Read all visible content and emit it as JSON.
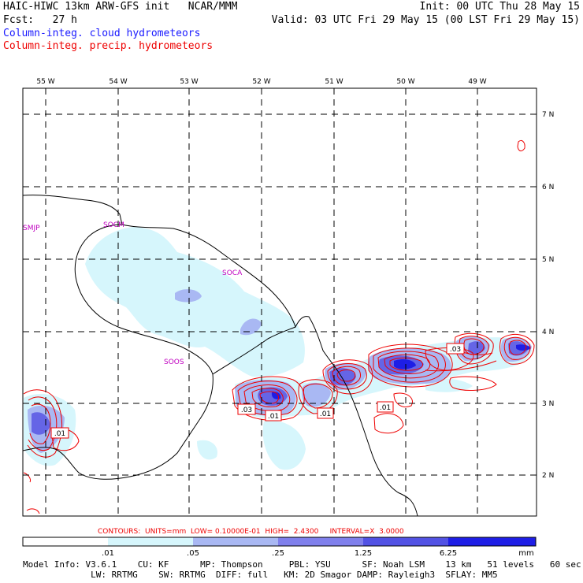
{
  "header": {
    "title": "HAIC-HIWC 13km ARW-GFS init   NCAR/MMM",
    "init": "Init: 00 UTC Thu 28 May 15",
    "fcst": "Fcst:   27 h",
    "valid": "Valid: 03 UTC Fri 29 May 15 (00 LST Fri 29 May 15)",
    "field_cloud": "Column-integ. cloud hydrometeors",
    "field_precip": "Column-integ. precip. hydrometeors"
  },
  "map": {
    "longitude_labels": [
      "55 W",
      "54 W",
      "53 W",
      "52 W",
      "51 W",
      "50 W",
      "49 W"
    ],
    "latitude_labels": [
      "7 N",
      "6 N",
      "5 N",
      "4 N",
      "3 N",
      "2 N"
    ],
    "stations": [
      "SMJP",
      "SOCM",
      "SOCA",
      "SOOS"
    ],
    "contour_labels": [
      ".03",
      ".01",
      ".01",
      ".03",
      ".01",
      ".01"
    ],
    "colors": {
      "cloud_light": "#d6f6fc",
      "cloud_mid": "#a9b8f3",
      "cloud_dark": "#6565e6",
      "precip": "#ee0000",
      "station": "#c000c0"
    }
  },
  "contour_info": "CONTOURS:  UNITS=mm  LOW= 0.10000E-01  HIGH=  2.4300     INTERVAL=X  3.0000",
  "colorbar": {
    "ticks": [
      ".01",
      ".05",
      ".25",
      "1.25",
      "6.25",
      "mm"
    ],
    "colors": [
      "#ffffff",
      "#d6f6fc",
      "#a9b8f3",
      "#8080ec",
      "#5252e4",
      "#1e1ee6"
    ]
  },
  "footer": {
    "line1": "Model Info: V3.6.1    CU: KF      MP: Thompson     PBL: YSU      SF: Noah LSM    13 km   51 levels   60 sec",
    "line2": "             LW: RRTMG    SW: RRTMG  DIFF: full   KM: 2D Smagor DAMP: Rayleigh3  SFLAY: MM5"
  }
}
